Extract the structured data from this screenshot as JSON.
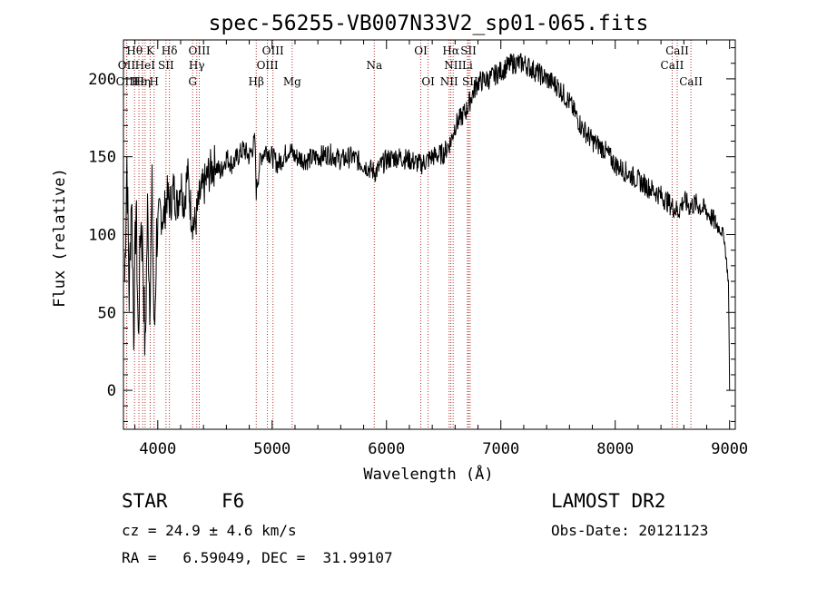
{
  "chart_data": {
    "type": "line",
    "title": "spec-56255-VB007N33V2_sp01-065.fits",
    "xlabel": "Wavelength (Å)",
    "ylabel": "Flux (relative)",
    "xlim": [
      3700,
      9050
    ],
    "ylim": [
      -25,
      225
    ],
    "xticks": [
      4000,
      5000,
      6000,
      7000,
      8000,
      9000
    ],
    "yticks": [
      0,
      50,
      100,
      150,
      200
    ],
    "grid": false,
    "series": [
      {
        "name": "",
        "x": [
          3710,
          3730,
          3750,
          3770,
          3790,
          3810,
          3830,
          3850,
          3870,
          3890,
          3910,
          3930,
          3950,
          3970,
          3990,
          4020,
          4050,
          4080,
          4110,
          4140,
          4170,
          4200,
          4230,
          4260,
          4290,
          4320,
          4340,
          4370,
          4400,
          4450,
          4500,
          4550,
          4600,
          4650,
          4700,
          4750,
          4800,
          4850,
          4861,
          4900,
          4950,
          5000,
          5050,
          5100,
          5150,
          5200,
          5300,
          5400,
          5500,
          5600,
          5700,
          5800,
          5900,
          6000,
          6100,
          6200,
          6300,
          6400,
          6500,
          6563,
          6600,
          6650,
          6700,
          6750,
          6800,
          6900,
          7000,
          7100,
          7200,
          7300,
          7400,
          7500,
          7600,
          7700,
          7800,
          7900,
          8000,
          8100,
          8200,
          8300,
          8400,
          8500,
          8550,
          8600,
          8650,
          8700,
          8800,
          8900,
          8950,
          8990,
          9000
        ],
        "values": [
          70,
          150,
          60,
          130,
          40,
          120,
          30,
          110,
          90,
          20,
          115,
          60,
          125,
          30,
          100,
          115,
          110,
          125,
          120,
          130,
          118,
          135,
          120,
          140,
          115,
          105,
          112,
          125,
          130,
          140,
          145,
          140,
          150,
          145,
          150,
          155,
          150,
          160,
          128,
          150,
          155,
          150,
          145,
          150,
          155,
          150,
          148,
          150,
          152,
          148,
          150,
          145,
          140,
          148,
          150,
          148,
          145,
          150,
          152,
          160,
          170,
          175,
          180,
          190,
          198,
          200,
          205,
          210,
          210,
          205,
          200,
          195,
          185,
          170,
          160,
          155,
          145,
          140,
          135,
          130,
          125,
          118,
          115,
          122,
          118,
          120,
          115,
          105,
          100,
          70,
          0
        ]
      }
    ],
    "lines": [
      {
        "label": "Hθ",
        "x": 3797,
        "row": 1
      },
      {
        "label": "OII",
        "x": 3727,
        "row": 2
      },
      {
        "label": "OIII",
        "x": 3729,
        "row": 3
      },
      {
        "label": "Hε",
        "x": 3835,
        "row": 3
      },
      {
        "label": "K",
        "x": 3934,
        "row": 1
      },
      {
        "label": "HeI",
        "x": 3889,
        "row": 2
      },
      {
        "label": "Hη",
        "x": 3868,
        "row": 3
      },
      {
        "label": "SII",
        "x": 4072,
        "row": 2
      },
      {
        "label": "H",
        "x": 3968,
        "row": 3
      },
      {
        "label": "Hδ",
        "x": 4102,
        "row": 1
      },
      {
        "label": "OIII",
        "x": 4363,
        "row": 1
      },
      {
        "label": "Hγ",
        "x": 4341,
        "row": 2
      },
      {
        "label": "G",
        "x": 4305,
        "row": 3
      },
      {
        "label": "OIII",
        "x": 5007,
        "row": 1
      },
      {
        "label": "OIII",
        "x": 4959,
        "row": 2
      },
      {
        "label": "Hβ",
        "x": 4861,
        "row": 3
      },
      {
        "label": "Mg",
        "x": 5175,
        "row": 3
      },
      {
        "label": "Na",
        "x": 5893,
        "row": 2
      },
      {
        "label": "OI",
        "x": 6300,
        "row": 1
      },
      {
        "label": "OI",
        "x": 6364,
        "row": 3
      },
      {
        "label": "Hα",
        "x": 6563,
        "row": 1
      },
      {
        "label": "SII",
        "x": 6717,
        "row": 1
      },
      {
        "label": "NII",
        "x": 6583,
        "row": 2
      },
      {
        "label": "Li",
        "x": 6708,
        "row": 2
      },
      {
        "label": "NII",
        "x": 6548,
        "row": 3
      },
      {
        "label": "SII",
        "x": 6731,
        "row": 3
      },
      {
        "label": "CaII",
        "x": 8542,
        "row": 1
      },
      {
        "label": "CaII",
        "x": 8498,
        "row": 2
      },
      {
        "label": "CaII",
        "x": 8662,
        "row": 3
      }
    ]
  },
  "info": {
    "class": "STAR",
    "subclass": "F6",
    "survey": "LAMOST DR2",
    "cz": "cz = 24.9 ± 4.6 km/s",
    "obs_date": "Obs-Date: 20121123",
    "coords": "RA =   6.59049, DEC =  31.99107"
  },
  "colors": {
    "line_marker": "#b03030",
    "spectrum": "#000000",
    "axes": "#000000"
  }
}
